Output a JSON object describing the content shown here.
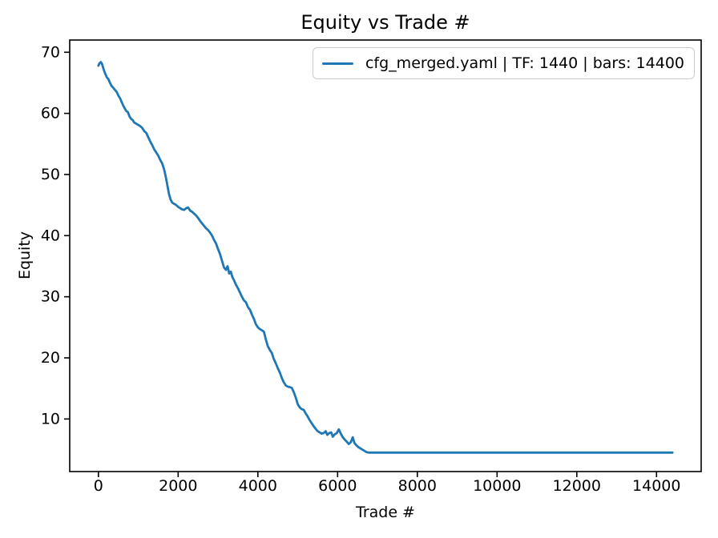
{
  "chart_data": {
    "type": "line",
    "title": "Equity vs Trade #",
    "xlabel": "Trade #",
    "ylabel": "Equity",
    "xlim": [
      -720,
      15120
    ],
    "ylim": [
      1.4,
      72.0
    ],
    "x_ticks": [
      0,
      2000,
      4000,
      6000,
      8000,
      10000,
      12000,
      14000
    ],
    "y_ticks": [
      10,
      20,
      30,
      40,
      50,
      60,
      70
    ],
    "grid": false,
    "legend_position": "upper right",
    "colors": {
      "line": "#1f77b4",
      "axis": "#000000",
      "legend_border": "#cccccc"
    },
    "series": [
      {
        "name": "cfg_merged.yaml | TF: 1440 | bars: 14400",
        "points": [
          [
            0,
            67.8
          ],
          [
            25,
            68.2
          ],
          [
            60,
            68.4
          ],
          [
            90,
            68.1
          ],
          [
            130,
            67.2
          ],
          [
            170,
            66.5
          ],
          [
            210,
            65.9
          ],
          [
            250,
            65.6
          ],
          [
            290,
            65.0
          ],
          [
            330,
            64.5
          ],
          [
            370,
            64.2
          ],
          [
            420,
            63.8
          ],
          [
            460,
            63.5
          ],
          [
            500,
            62.9
          ],
          [
            540,
            62.5
          ],
          [
            580,
            61.9
          ],
          [
            620,
            61.3
          ],
          [
            660,
            60.8
          ],
          [
            700,
            60.4
          ],
          [
            740,
            60.2
          ],
          [
            780,
            59.5
          ],
          [
            820,
            59.1
          ],
          [
            860,
            58.9
          ],
          [
            900,
            58.5
          ],
          [
            950,
            58.3
          ],
          [
            1000,
            58.1
          ],
          [
            1050,
            57.9
          ],
          [
            1100,
            57.6
          ],
          [
            1150,
            57.1
          ],
          [
            1200,
            56.8
          ],
          [
            1250,
            56.1
          ],
          [
            1300,
            55.4
          ],
          [
            1350,
            54.8
          ],
          [
            1400,
            54.1
          ],
          [
            1450,
            53.6
          ],
          [
            1500,
            53.1
          ],
          [
            1550,
            52.4
          ],
          [
            1600,
            51.8
          ],
          [
            1650,
            50.8
          ],
          [
            1690,
            49.6
          ],
          [
            1730,
            48.2
          ],
          [
            1770,
            46.8
          ],
          [
            1810,
            45.9
          ],
          [
            1850,
            45.4
          ],
          [
            1900,
            45.2
          ],
          [
            1950,
            45.0
          ],
          [
            2000,
            44.7
          ],
          [
            2050,
            44.5
          ],
          [
            2100,
            44.3
          ],
          [
            2150,
            44.2
          ],
          [
            2200,
            44.5
          ],
          [
            2250,
            44.6
          ],
          [
            2300,
            44.1
          ],
          [
            2350,
            43.9
          ],
          [
            2400,
            43.6
          ],
          [
            2450,
            43.3
          ],
          [
            2500,
            42.9
          ],
          [
            2550,
            42.4
          ],
          [
            2600,
            42.0
          ],
          [
            2650,
            41.6
          ],
          [
            2700,
            41.2
          ],
          [
            2750,
            40.9
          ],
          [
            2800,
            40.5
          ],
          [
            2850,
            40.0
          ],
          [
            2900,
            39.3
          ],
          [
            2950,
            38.7
          ],
          [
            3000,
            37.8
          ],
          [
            3050,
            37.0
          ],
          [
            3100,
            35.9
          ],
          [
            3150,
            34.8
          ],
          [
            3200,
            34.4
          ],
          [
            3240,
            35.0
          ],
          [
            3280,
            33.8
          ],
          [
            3320,
            34.1
          ],
          [
            3360,
            33.2
          ],
          [
            3400,
            32.7
          ],
          [
            3450,
            32.0
          ],
          [
            3500,
            31.4
          ],
          [
            3550,
            30.7
          ],
          [
            3600,
            30.0
          ],
          [
            3650,
            29.4
          ],
          [
            3700,
            29.1
          ],
          [
            3750,
            28.3
          ],
          [
            3800,
            27.9
          ],
          [
            3850,
            27.1
          ],
          [
            3900,
            26.4
          ],
          [
            3950,
            25.5
          ],
          [
            4000,
            25.0
          ],
          [
            4050,
            24.7
          ],
          [
            4100,
            24.5
          ],
          [
            4150,
            24.3
          ],
          [
            4200,
            23.0
          ],
          [
            4250,
            21.9
          ],
          [
            4300,
            21.3
          ],
          [
            4350,
            20.8
          ],
          [
            4400,
            19.8
          ],
          [
            4450,
            19.1
          ],
          [
            4500,
            18.3
          ],
          [
            4550,
            17.6
          ],
          [
            4600,
            16.7
          ],
          [
            4650,
            16.0
          ],
          [
            4700,
            15.5
          ],
          [
            4750,
            15.3
          ],
          [
            4800,
            15.2
          ],
          [
            4850,
            15.1
          ],
          [
            4900,
            14.4
          ],
          [
            4950,
            13.5
          ],
          [
            5000,
            12.4
          ],
          [
            5050,
            11.9
          ],
          [
            5100,
            11.6
          ],
          [
            5150,
            11.5
          ],
          [
            5200,
            10.9
          ],
          [
            5250,
            10.4
          ],
          [
            5300,
            9.8
          ],
          [
            5350,
            9.3
          ],
          [
            5400,
            8.8
          ],
          [
            5450,
            8.4
          ],
          [
            5500,
            8.0
          ],
          [
            5550,
            7.8
          ],
          [
            5600,
            7.6
          ],
          [
            5650,
            7.7
          ],
          [
            5700,
            8.0
          ],
          [
            5740,
            7.4
          ],
          [
            5790,
            7.7
          ],
          [
            5840,
            7.8
          ],
          [
            5880,
            7.1
          ],
          [
            5930,
            7.5
          ],
          [
            5980,
            7.7
          ],
          [
            6030,
            8.3
          ],
          [
            6080,
            7.6
          ],
          [
            6130,
            7.0
          ],
          [
            6180,
            6.6
          ],
          [
            6230,
            6.3
          ],
          [
            6280,
            5.9
          ],
          [
            6330,
            6.2
          ],
          [
            6380,
            7.0
          ],
          [
            6420,
            6.1
          ],
          [
            6470,
            5.7
          ],
          [
            6520,
            5.4
          ],
          [
            6570,
            5.2
          ],
          [
            6620,
            5.0
          ],
          [
            6670,
            4.8
          ],
          [
            6720,
            4.6
          ],
          [
            6780,
            4.5
          ],
          [
            6850,
            4.5
          ],
          [
            14400,
            4.5
          ]
        ]
      }
    ]
  }
}
